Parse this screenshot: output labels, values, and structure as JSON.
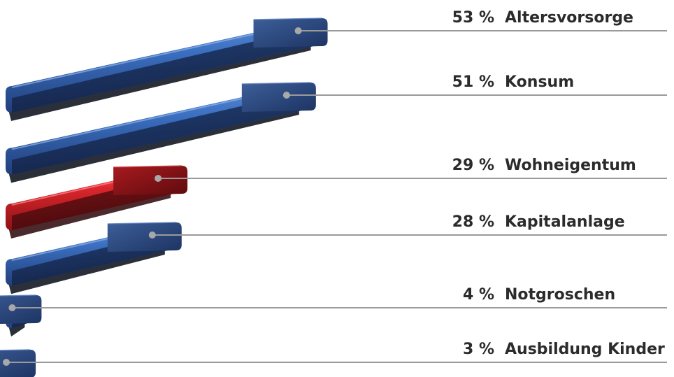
{
  "chart_data": {
    "type": "bar",
    "orientation": "horizontal",
    "unit": "%",
    "categories": [
      "Altersvorsorge",
      "Konsum",
      "Wohneigentum",
      "Kapitalanlage",
      "Notgroschen",
      "Ausbildung Kinder"
    ],
    "values": [
      53,
      51,
      29,
      28,
      4,
      3
    ],
    "value_labels": [
      "53 %",
      "51 %",
      "29 %",
      "28 %",
      "4 %",
      "3 %"
    ],
    "highlight_category": "Wohneigentum",
    "colors": {
      "default": "#3b6fc0",
      "highlight": "#d8262c",
      "leader_line": "#9a9a9a"
    },
    "grid": false,
    "legend": "none"
  }
}
